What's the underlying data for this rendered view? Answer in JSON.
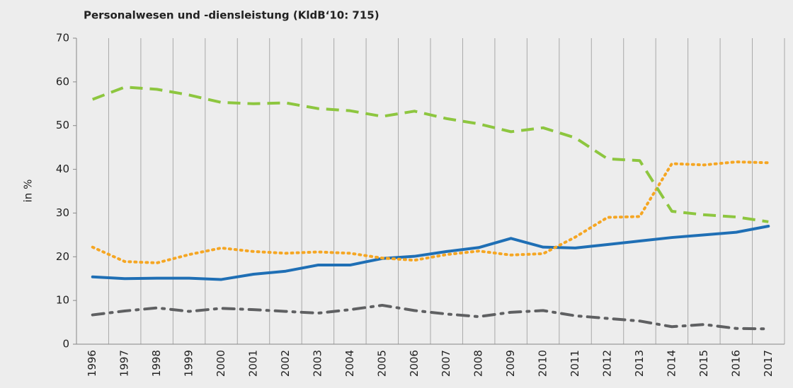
{
  "chart_data": {
    "type": "line",
    "title": "Personalwesen und -diensleistung (KldB‘10: 715)",
    "y_label": "in %",
    "categories": [
      "1996",
      "1997",
      "1998",
      "1999",
      "2000",
      "2001",
      "2002",
      "2003",
      "2004",
      "2005",
      "2006",
      "2007",
      "2008",
      "2009",
      "2010",
      "2011",
      "2012",
      "2013",
      "2014",
      "2015",
      "2016",
      "2017"
    ],
    "series": [
      {
        "color": "#1f6fb5",
        "dash": "solid",
        "values": [
          15.4,
          15.0,
          15.1,
          15.1,
          14.8,
          16.0,
          16.7,
          18.1,
          18.1,
          19.6,
          20.1,
          21.2,
          22.1,
          24.2,
          22.2,
          22.0,
          22.8,
          23.6,
          24.4,
          25.0,
          25.6,
          27.0
        ]
      },
      {
        "color": "#f5a623",
        "dash": "dotted",
        "values": [
          22.2,
          18.9,
          18.6,
          20.5,
          22.0,
          21.2,
          20.8,
          21.1,
          20.8,
          19.7,
          19.2,
          20.5,
          21.3,
          20.4,
          20.7,
          24.5,
          29.0,
          29.2,
          41.3,
          41.0,
          41.7,
          41.5
        ]
      },
      {
        "color": "#8dc63f",
        "dash": "dashed",
        "values": [
          56.0,
          58.8,
          58.3,
          57.0,
          55.3,
          55.0,
          55.2,
          53.9,
          53.4,
          52.1,
          53.3,
          51.6,
          50.4,
          48.6,
          49.5,
          47.2,
          42.4,
          42.0,
          30.4,
          29.6,
          29.1,
          28.0
        ]
      },
      {
        "color": "#5f6062",
        "dash": "dashdot",
        "values": [
          6.7,
          7.6,
          8.3,
          7.5,
          8.2,
          7.9,
          7.5,
          7.1,
          7.9,
          8.9,
          7.7,
          6.9,
          6.3,
          7.3,
          7.7,
          6.5,
          5.9,
          5.3,
          4.0,
          4.5,
          3.6,
          3.5
        ]
      }
    ],
    "ylim": [
      0,
      70
    ],
    "yticks": [
      0,
      10,
      20,
      30,
      40,
      50,
      60,
      70
    ],
    "grid": "vertical"
  }
}
